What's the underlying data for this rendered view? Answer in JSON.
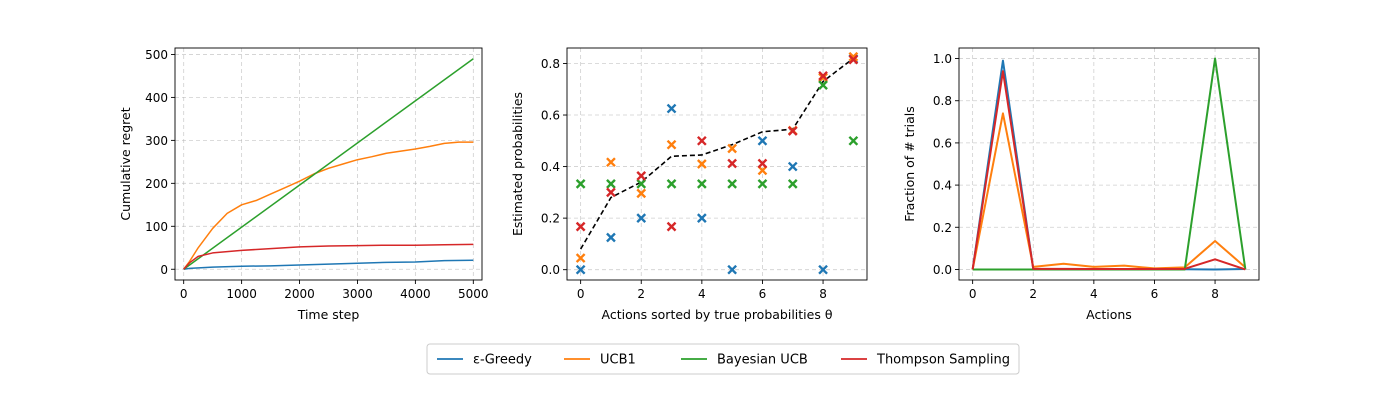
{
  "chart_data": [
    {
      "type": "line",
      "xlabel": "Time step",
      "ylabel": "Cumulative regret",
      "xlim": [
        -150,
        5150
      ],
      "ylim": [
        -25,
        515
      ],
      "xticks": [
        0,
        1000,
        2000,
        3000,
        4000,
        5000
      ],
      "yticks": [
        0,
        100,
        200,
        300,
        400,
        500
      ],
      "grid": true,
      "series": [
        {
          "name": "ε-Greedy",
          "color": "#1f77b4",
          "x": [
            0,
            100,
            500,
            1000,
            1500,
            2000,
            2500,
            3000,
            3500,
            4000,
            4500,
            5000
          ],
          "y": [
            0,
            2,
            5,
            7,
            8,
            10,
            12,
            14,
            16,
            17,
            20,
            21
          ]
        },
        {
          "name": "UCB1",
          "color": "#ff7f0e",
          "x": [
            0,
            100,
            250,
            500,
            750,
            1000,
            1250,
            1500,
            1750,
            2000,
            2250,
            2500,
            2750,
            3000,
            3250,
            3500,
            3750,
            4000,
            4250,
            4500,
            4750,
            5000
          ],
          "y": [
            0,
            18,
            50,
            95,
            130,
            150,
            160,
            175,
            190,
            205,
            222,
            235,
            245,
            255,
            262,
            270,
            275,
            280,
            286,
            293,
            296,
            296
          ]
        },
        {
          "name": "Bayesian UCB",
          "color": "#2ca02c",
          "x": [
            0,
            5000
          ],
          "y": [
            0,
            490
          ]
        },
        {
          "name": "Thompson Sampling",
          "color": "#d62728",
          "x": [
            0,
            100,
            250,
            500,
            750,
            1000,
            1500,
            2000,
            2500,
            3000,
            3500,
            4000,
            4500,
            5000
          ],
          "y": [
            0,
            15,
            30,
            38,
            41,
            44,
            48,
            52,
            54,
            55,
            56,
            56,
            57,
            58
          ]
        }
      ]
    },
    {
      "type": "scatter",
      "xlabel": "Actions sorted by true probabilities θ",
      "ylabel": "Estimated probabilities",
      "xlim": [
        -0.45,
        9.45
      ],
      "ylim": [
        -0.04,
        0.86
      ],
      "xticks": [
        0,
        2,
        4,
        6,
        8
      ],
      "yticks": [
        0.0,
        0.2,
        0.4,
        0.6,
        0.8
      ],
      "grid": true,
      "true_probabilities": {
        "color": "#000000",
        "style": "dashed",
        "x": [
          0,
          1,
          2,
          3,
          4,
          5,
          6,
          7,
          8,
          9
        ],
        "y": [
          0.08,
          0.28,
          0.34,
          0.44,
          0.445,
          0.485,
          0.535,
          0.545,
          0.73,
          0.82
        ]
      },
      "series": [
        {
          "name": "ε-Greedy",
          "color": "#1f77b4",
          "marker": "x",
          "x": [
            0,
            1,
            2,
            3,
            4,
            5,
            6,
            7,
            8,
            9
          ],
          "y": [
            0.0,
            0.125,
            0.2,
            0.625,
            0.2,
            0.0,
            0.5,
            0.4,
            0.0,
            0.818
          ]
        },
        {
          "name": "UCB1",
          "color": "#ff7f0e",
          "marker": "x",
          "x": [
            0,
            1,
            2,
            3,
            4,
            5,
            6,
            7,
            8,
            9
          ],
          "y": [
            0.045,
            0.417,
            0.296,
            0.485,
            0.41,
            0.47,
            0.385,
            0.54,
            0.745,
            0.826
          ]
        },
        {
          "name": "Bayesian UCB",
          "color": "#2ca02c",
          "marker": "x",
          "x": [
            0,
            1,
            2,
            3,
            4,
            5,
            6,
            7,
            8,
            9
          ],
          "y": [
            0.333,
            0.333,
            0.333,
            0.333,
            0.333,
            0.333,
            0.333,
            0.333,
            0.716,
            0.5
          ]
        },
        {
          "name": "Thompson Sampling",
          "color": "#d62728",
          "marker": "x",
          "x": [
            0,
            1,
            2,
            3,
            4,
            5,
            6,
            7,
            8,
            9
          ],
          "y": [
            0.167,
            0.3,
            0.364,
            0.167,
            0.5,
            0.412,
            0.412,
            0.538,
            0.752,
            0.815
          ]
        }
      ]
    },
    {
      "type": "line",
      "xlabel": "Actions",
      "ylabel": "Fraction of # trials",
      "xlim": [
        -0.45,
        9.45
      ],
      "ylim": [
        -0.05,
        1.05
      ],
      "xticks": [
        0,
        2,
        4,
        6,
        8
      ],
      "yticks": [
        0.0,
        0.2,
        0.4,
        0.6,
        0.8,
        1.0
      ],
      "grid": true,
      "series": [
        {
          "name": "ε-Greedy",
          "color": "#1f77b4",
          "x": [
            0,
            1,
            2,
            3,
            4,
            5,
            6,
            7,
            8,
            9
          ],
          "y": [
            0.0,
            0.99,
            0.002,
            0.002,
            0.001,
            0.001,
            0.001,
            0.001,
            0.0,
            0.002
          ]
        },
        {
          "name": "UCB1",
          "color": "#ff7f0e",
          "x": [
            0,
            1,
            2,
            3,
            4,
            5,
            6,
            7,
            8,
            9
          ],
          "y": [
            0.0,
            0.74,
            0.012,
            0.027,
            0.012,
            0.018,
            0.005,
            0.01,
            0.135,
            0.01
          ]
        },
        {
          "name": "Bayesian UCB",
          "color": "#2ca02c",
          "x": [
            0,
            1,
            2,
            3,
            4,
            5,
            6,
            7,
            8,
            9
          ],
          "y": [
            0.0,
            0.0,
            0.0,
            0.0,
            0.0,
            0.0,
            0.0,
            0.0,
            1.0,
            0.0
          ]
        },
        {
          "name": "Thompson Sampling",
          "color": "#d62728",
          "x": [
            0,
            1,
            2,
            3,
            4,
            5,
            6,
            7,
            8,
            9
          ],
          "y": [
            0.0,
            0.94,
            0.003,
            0.003,
            0.002,
            0.002,
            0.002,
            0.003,
            0.048,
            0.0
          ]
        }
      ]
    }
  ],
  "legend": {
    "placement": "bottom-center",
    "entries": [
      {
        "label": "ε-Greedy",
        "color": "#1f77b4"
      },
      {
        "label": "UCB1",
        "color": "#ff7f0e"
      },
      {
        "label": "Bayesian UCB",
        "color": "#2ca02c"
      },
      {
        "label": "Thompson Sampling",
        "color": "#d62728"
      }
    ]
  }
}
